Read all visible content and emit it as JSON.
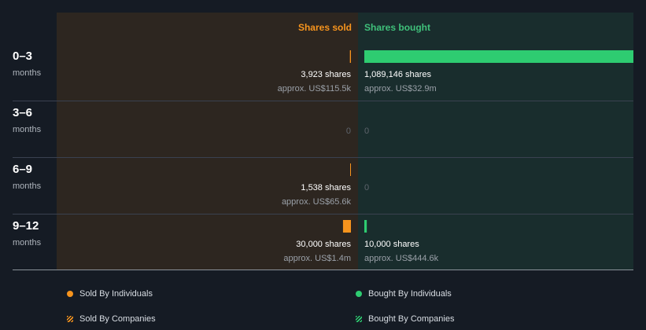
{
  "chart_data": {
    "type": "bar",
    "headers": {
      "sold": "Shares sold",
      "bought": "Shares bought"
    },
    "colors": {
      "sold": "#f7941d",
      "bought": "#2ecc71",
      "sold_panel": "#2d2620",
      "bought_panel": "#192d2d",
      "header_sold": "#f7941d",
      "header_bought": "#3fc07a"
    },
    "categories": [
      {
        "period": "0–3",
        "unit": "months",
        "sold": {
          "shares": 3923,
          "shares_label": "3,923 shares",
          "value_label": "approx. US$115.5k"
        },
        "bought": {
          "shares": 1089146,
          "shares_label": "1,089,146 shares",
          "value_label": "approx. US$32.9m"
        }
      },
      {
        "period": "3–6",
        "unit": "months",
        "sold": {
          "shares": 0,
          "shares_label": "0",
          "value_label": ""
        },
        "bought": {
          "shares": 0,
          "shares_label": "0",
          "value_label": ""
        }
      },
      {
        "period": "6–9",
        "unit": "months",
        "sold": {
          "shares": 1538,
          "shares_label": "1,538 shares",
          "value_label": "approx. US$65.6k"
        },
        "bought": {
          "shares": 0,
          "shares_label": "0",
          "value_label": ""
        }
      },
      {
        "period": "9–12",
        "unit": "months",
        "sold": {
          "shares": 30000,
          "shares_label": "30,000 shares",
          "value_label": "approx. US$1.4m"
        },
        "bought": {
          "shares": 10000,
          "shares_label": "10,000 shares",
          "value_label": "approx. US$444.6k"
        }
      }
    ],
    "legend": [
      {
        "label": "Sold By Individuals",
        "style": "dot",
        "series": "sold"
      },
      {
        "label": "Bought By Individuals",
        "style": "dot",
        "series": "bought"
      },
      {
        "label": "Sold By Companies",
        "style": "hatch",
        "series": "sold"
      },
      {
        "label": "Bought By Companies",
        "style": "hatch",
        "series": "bought"
      }
    ]
  }
}
